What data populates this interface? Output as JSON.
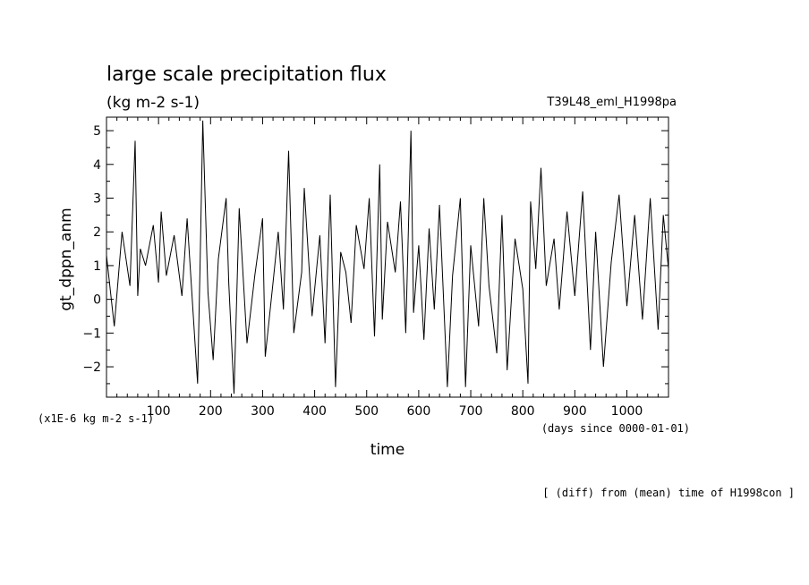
{
  "chart_data": {
    "type": "line",
    "title": "large scale precipitation flux",
    "subtitle": "(kg m-2 s-1)",
    "run_label": "T39L48_eml_H1998pa",
    "ylabel": "gt_dppn_anm",
    "y_unit": "(x1E-6 kg m-2 s-1)",
    "xlabel": "time",
    "x_unit": "(days since 0000-01-01)",
    "footnote": "[ (diff) from (mean) time of H1998con ]",
    "xlim": [
      0,
      1080
    ],
    "ylim": [
      -2.9,
      5.4
    ],
    "x_ticks": [
      100,
      200,
      300,
      400,
      500,
      600,
      700,
      800,
      900,
      1000
    ],
    "y_ticks": [
      -2,
      -1,
      0,
      1,
      2,
      3,
      4,
      5
    ],
    "grid": false,
    "legend": "none",
    "line_color": "#000000",
    "series": [
      {
        "x": [
          0,
          15,
          30,
          45,
          55,
          60,
          65,
          75,
          90,
          100,
          105,
          115,
          130,
          145,
          155,
          175,
          180,
          185,
          195,
          205,
          215,
          230,
          235,
          245,
          255,
          270,
          285,
          300,
          305,
          320,
          330,
          340,
          350,
          360,
          375,
          380,
          395,
          410,
          420,
          430,
          440,
          450,
          460,
          470,
          480,
          495,
          505,
          515,
          525,
          530,
          540,
          555,
          565,
          575,
          585,
          590,
          600,
          610,
          620,
          630,
          640,
          655,
          665,
          680,
          690,
          700,
          715,
          725,
          735,
          750,
          760,
          770,
          785,
          800,
          810,
          815,
          825,
          835,
          845,
          860,
          870,
          885,
          900,
          915,
          930,
          940,
          955,
          970,
          985,
          1000,
          1015,
          1030,
          1045,
          1060,
          1070,
          1080
        ],
        "y": [
          1.3,
          -0.8,
          2.0,
          0.4,
          4.7,
          0.1,
          1.5,
          1.0,
          2.2,
          0.5,
          2.6,
          0.7,
          1.9,
          0.1,
          2.4,
          -2.5,
          1.2,
          5.3,
          0.2,
          -1.8,
          1.2,
          3.0,
          0.5,
          -2.8,
          2.7,
          -1.3,
          0.7,
          2.4,
          -1.7,
          0.5,
          2.0,
          -0.3,
          4.4,
          -1.0,
          0.8,
          3.3,
          -0.5,
          1.9,
          -1.3,
          3.1,
          -2.6,
          1.4,
          0.8,
          -0.7,
          2.2,
          0.9,
          3.0,
          -1.1,
          4.0,
          -0.6,
          2.3,
          0.8,
          2.9,
          -1.0,
          5.0,
          -0.4,
          1.6,
          -1.2,
          2.1,
          -0.3,
          2.8,
          -2.6,
          0.7,
          3.0,
          -2.6,
          1.6,
          -0.8,
          3.0,
          0.4,
          -1.6,
          2.5,
          -2.1,
          1.8,
          0.3,
          -2.5,
          2.9,
          0.9,
          3.9,
          0.4,
          1.8,
          -0.3,
          2.6,
          0.1,
          3.2,
          -1.5,
          2.0,
          -2.0,
          1.1,
          3.1,
          -0.2,
          2.5,
          -0.6,
          3.0,
          -0.9,
          2.5,
          0.9
        ]
      }
    ]
  }
}
